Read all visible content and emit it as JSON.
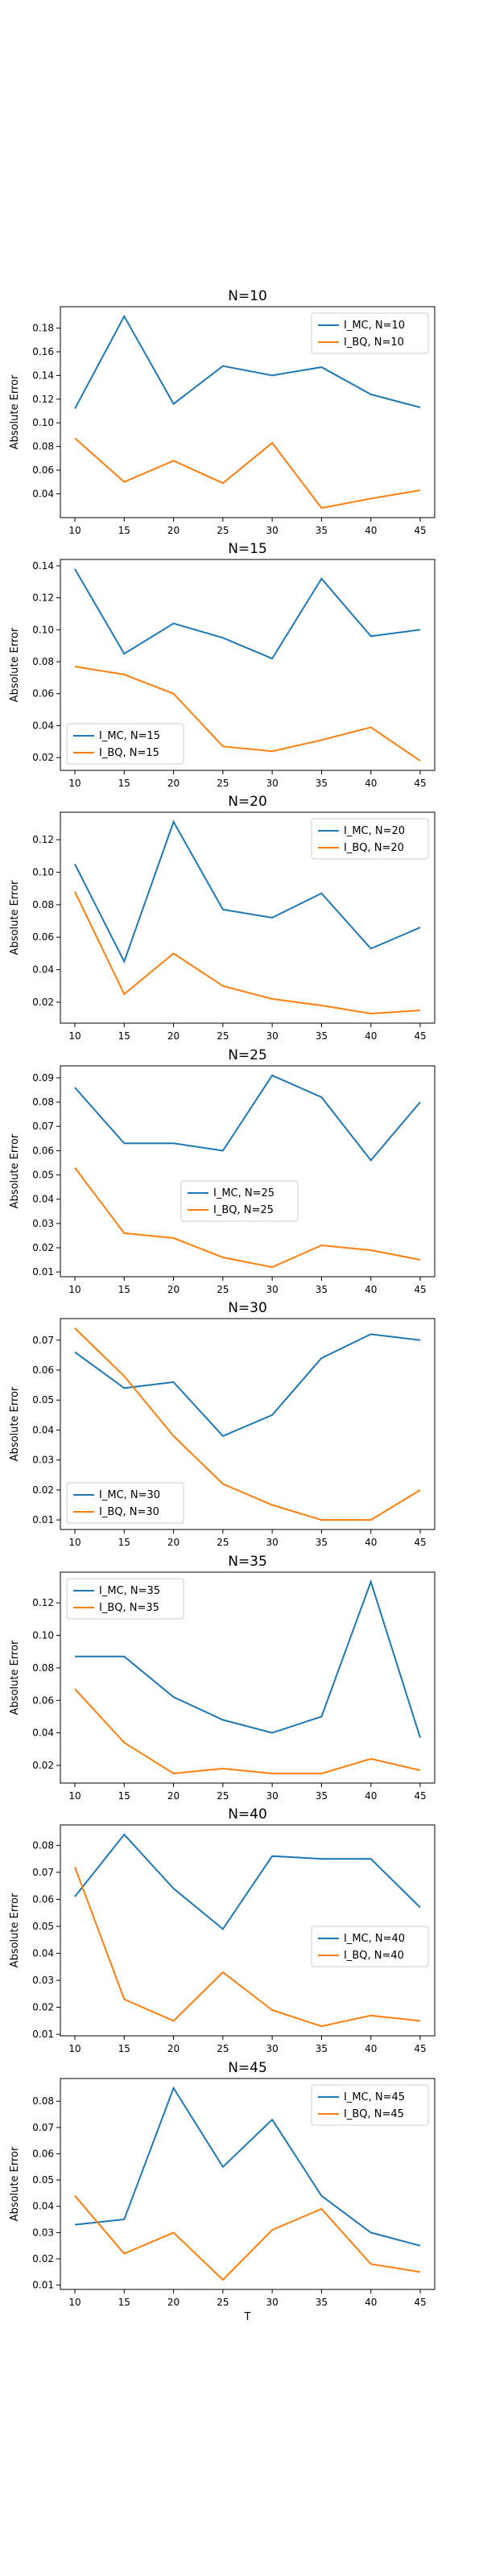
{
  "chart_data": [
    {
      "type": "line",
      "title": "N=10",
      "xlabel": "",
      "ylabel": "Absolute Error",
      "x": [
        10,
        15,
        20,
        25,
        30,
        35,
        40,
        45
      ],
      "yticks": [
        "0.04",
        "0.06",
        "0.08",
        "0.10",
        "0.12",
        "0.14",
        "0.16",
        "0.18"
      ],
      "legend_placement": "upper-right",
      "series": [
        {
          "name": "I_MC, N=10",
          "color": "#1f77b4",
          "values": [
            0.112,
            0.19,
            0.116,
            0.148,
            0.14,
            0.147,
            0.124,
            0.113
          ]
        },
        {
          "name": "I_BQ, N=10",
          "color": "#ff7f0e",
          "values": [
            0.087,
            0.05,
            0.068,
            0.049,
            0.083,
            0.028,
            0.036,
            0.043
          ]
        }
      ]
    },
    {
      "type": "line",
      "title": "N=15",
      "xlabel": "",
      "ylabel": "Absolute Error",
      "x": [
        10,
        15,
        20,
        25,
        30,
        35,
        40,
        45
      ],
      "yticks": [
        "0.02",
        "0.04",
        "0.06",
        "0.08",
        "0.10",
        "0.12",
        "0.14"
      ],
      "legend_placement": "lower-left",
      "series": [
        {
          "name": "I_MC, N=15",
          "color": "#1f77b4",
          "values": [
            0.138,
            0.085,
            0.104,
            0.095,
            0.082,
            0.132,
            0.096,
            0.1
          ]
        },
        {
          "name": "I_BQ, N=15",
          "color": "#ff7f0e",
          "values": [
            0.077,
            0.072,
            0.06,
            0.027,
            0.024,
            0.031,
            0.039,
            0.018
          ]
        }
      ]
    },
    {
      "type": "line",
      "title": "N=20",
      "xlabel": "",
      "ylabel": "Absolute Error",
      "x": [
        10,
        15,
        20,
        25,
        30,
        35,
        40,
        45
      ],
      "yticks": [
        "0.02",
        "0.04",
        "0.06",
        "0.08",
        "0.10",
        "0.12"
      ],
      "legend_placement": "upper-right",
      "series": [
        {
          "name": "I_MC, N=20",
          "color": "#1f77b4",
          "values": [
            0.105,
            0.045,
            0.131,
            0.077,
            0.072,
            0.087,
            0.053,
            0.066
          ]
        },
        {
          "name": "I_BQ, N=20",
          "color": "#ff7f0e",
          "values": [
            0.088,
            0.025,
            0.05,
            0.03,
            0.022,
            0.018,
            0.013,
            0.015
          ]
        }
      ]
    },
    {
      "type": "line",
      "title": "N=25",
      "xlabel": "",
      "ylabel": "Absolute Error",
      "x": [
        10,
        15,
        20,
        25,
        30,
        35,
        40,
        45
      ],
      "yticks": [
        "0.01",
        "0.02",
        "0.03",
        "0.04",
        "0.05",
        "0.06",
        "0.07",
        "0.08",
        "0.09"
      ],
      "legend_placement": "center",
      "series": [
        {
          "name": "I_MC, N=25",
          "color": "#1f77b4",
          "values": [
            0.086,
            0.063,
            0.063,
            0.06,
            0.091,
            0.082,
            0.056,
            0.08
          ]
        },
        {
          "name": "I_BQ, N=25",
          "color": "#ff7f0e",
          "values": [
            0.053,
            0.026,
            0.024,
            0.016,
            0.012,
            0.021,
            0.019,
            0.015
          ]
        }
      ]
    },
    {
      "type": "line",
      "title": "N=30",
      "xlabel": "",
      "ylabel": "Absolute Error",
      "x": [
        10,
        15,
        20,
        25,
        30,
        35,
        40,
        45
      ],
      "yticks": [
        "0.01",
        "0.02",
        "0.03",
        "0.04",
        "0.05",
        "0.06",
        "0.07"
      ],
      "legend_placement": "lower-left",
      "series": [
        {
          "name": "I_MC, N=30",
          "color": "#1f77b4",
          "values": [
            0.066,
            0.054,
            0.056,
            0.038,
            0.045,
            0.064,
            0.072,
            0.07
          ]
        },
        {
          "name": "I_BQ, N=30",
          "color": "#ff7f0e",
          "values": [
            0.074,
            0.058,
            0.038,
            0.022,
            0.015,
            0.01,
            0.01,
            0.02
          ]
        }
      ]
    },
    {
      "type": "line",
      "title": "N=35",
      "xlabel": "",
      "ylabel": "Absolute Error",
      "x": [
        10,
        15,
        20,
        25,
        30,
        35,
        40,
        45
      ],
      "yticks": [
        "0.02",
        "0.04",
        "0.06",
        "0.08",
        "0.10",
        "0.12"
      ],
      "legend_placement": "upper-left",
      "series": [
        {
          "name": "I_MC, N=35",
          "color": "#1f77b4",
          "values": [
            0.087,
            0.087,
            0.062,
            0.048,
            0.04,
            0.05,
            0.133,
            0.037
          ]
        },
        {
          "name": "I_BQ, N=35",
          "color": "#ff7f0e",
          "values": [
            0.067,
            0.034,
            0.015,
            0.018,
            0.015,
            0.015,
            0.024,
            0.017
          ]
        }
      ]
    },
    {
      "type": "line",
      "title": "N=40",
      "xlabel": "",
      "ylabel": "Absolute Error",
      "x": [
        10,
        15,
        20,
        25,
        30,
        35,
        40,
        45
      ],
      "yticks": [
        "0.01",
        "0.02",
        "0.03",
        "0.04",
        "0.05",
        "0.06",
        "0.07",
        "0.08"
      ],
      "legend_placement": "center-right",
      "series": [
        {
          "name": "I_MC, N=40",
          "color": "#1f77b4",
          "values": [
            0.061,
            0.084,
            0.064,
            0.049,
            0.076,
            0.075,
            0.075,
            0.057
          ]
        },
        {
          "name": "I_BQ, N=40",
          "color": "#ff7f0e",
          "values": [
            0.072,
            0.023,
            0.015,
            0.033,
            0.019,
            0.013,
            0.017,
            0.015
          ]
        }
      ]
    },
    {
      "type": "line",
      "title": "N=45",
      "xlabel": "T",
      "ylabel": "Absolute Error",
      "x": [
        10,
        15,
        20,
        25,
        30,
        35,
        40,
        45
      ],
      "yticks": [
        "0.01",
        "0.02",
        "0.03",
        "0.04",
        "0.05",
        "0.06",
        "0.07",
        "0.08"
      ],
      "legend_placement": "upper-right",
      "series": [
        {
          "name": "I_MC, N=45",
          "color": "#1f77b4",
          "values": [
            0.033,
            0.035,
            0.085,
            0.055,
            0.073,
            0.044,
            0.03,
            0.025
          ]
        },
        {
          "name": "I_BQ, N=45",
          "color": "#ff7f0e",
          "values": [
            0.044,
            0.022,
            0.03,
            0.012,
            0.031,
            0.039,
            0.018,
            0.015
          ]
        }
      ]
    }
  ]
}
